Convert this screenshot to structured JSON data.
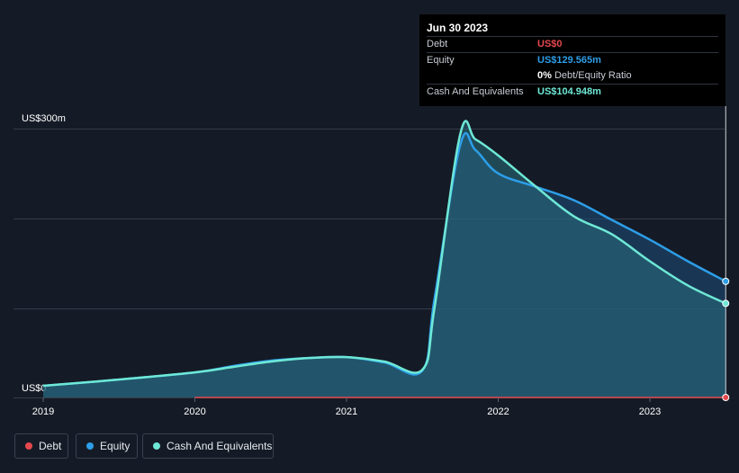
{
  "tooltip": {
    "date": "Jun 30 2023",
    "debt_label": "Debt",
    "debt_value": "US$0",
    "equity_label": "Equity",
    "equity_value": "US$129.565m",
    "ratio_pct": "0%",
    "ratio_label": "Debt/Equity Ratio",
    "cash_label": "Cash And Equivalents",
    "cash_value": "US$104.948m"
  },
  "legend": {
    "debt": "Debt",
    "equity": "Equity",
    "cash": "Cash And Equivalents"
  },
  "colors": {
    "debt": "#e5484d",
    "equity": "#2d9ee8",
    "cash": "#6ee8d6",
    "background": "#151b26",
    "grid": "#343b48"
  },
  "chart_data": {
    "type": "area",
    "title": "",
    "xlabel": "",
    "ylabel": "",
    "y_top_label": "US$300m",
    "y_zero_label": "US$0",
    "ylim": [
      0,
      300
    ],
    "x_ticks": [
      {
        "value": 2019,
        "label": "2019"
      },
      {
        "value": 2020,
        "label": "2020"
      },
      {
        "value": 2021,
        "label": "2021"
      },
      {
        "value": 2022,
        "label": "2022"
      },
      {
        "value": 2023,
        "label": "2023"
      }
    ],
    "x_range": [
      2019,
      2023.5
    ],
    "series": [
      {
        "name": "Equity",
        "x": [
          2019.0,
          2019.5,
          2020.0,
          2020.25,
          2020.5,
          2020.75,
          2021.0,
          2021.25,
          2021.5,
          2021.58,
          2021.75,
          2021.85,
          2022.0,
          2022.25,
          2022.5,
          2022.75,
          2023.0,
          2023.25,
          2023.5
        ],
        "values": [
          13,
          20,
          28,
          35,
          41,
          44,
          45,
          39,
          30,
          110,
          282,
          276,
          250,
          235,
          220,
          198,
          176,
          152,
          129.565
        ]
      },
      {
        "name": "Cash And Equivalents",
        "x": [
          2019.0,
          2019.5,
          2020.0,
          2020.25,
          2020.5,
          2020.75,
          2021.0,
          2021.25,
          2021.5,
          2021.58,
          2021.75,
          2021.85,
          2022.0,
          2022.25,
          2022.5,
          2022.75,
          2023.0,
          2023.25,
          2023.5
        ],
        "values": [
          13,
          20,
          28,
          34,
          40,
          44,
          45,
          40,
          31,
          100,
          294,
          288,
          270,
          235,
          202,
          182,
          152,
          125,
          104.948
        ]
      },
      {
        "name": "Debt",
        "x": [
          2020.0,
          2023.5
        ],
        "values": [
          0,
          0
        ]
      }
    ],
    "tooltip_x": 2023.5
  }
}
